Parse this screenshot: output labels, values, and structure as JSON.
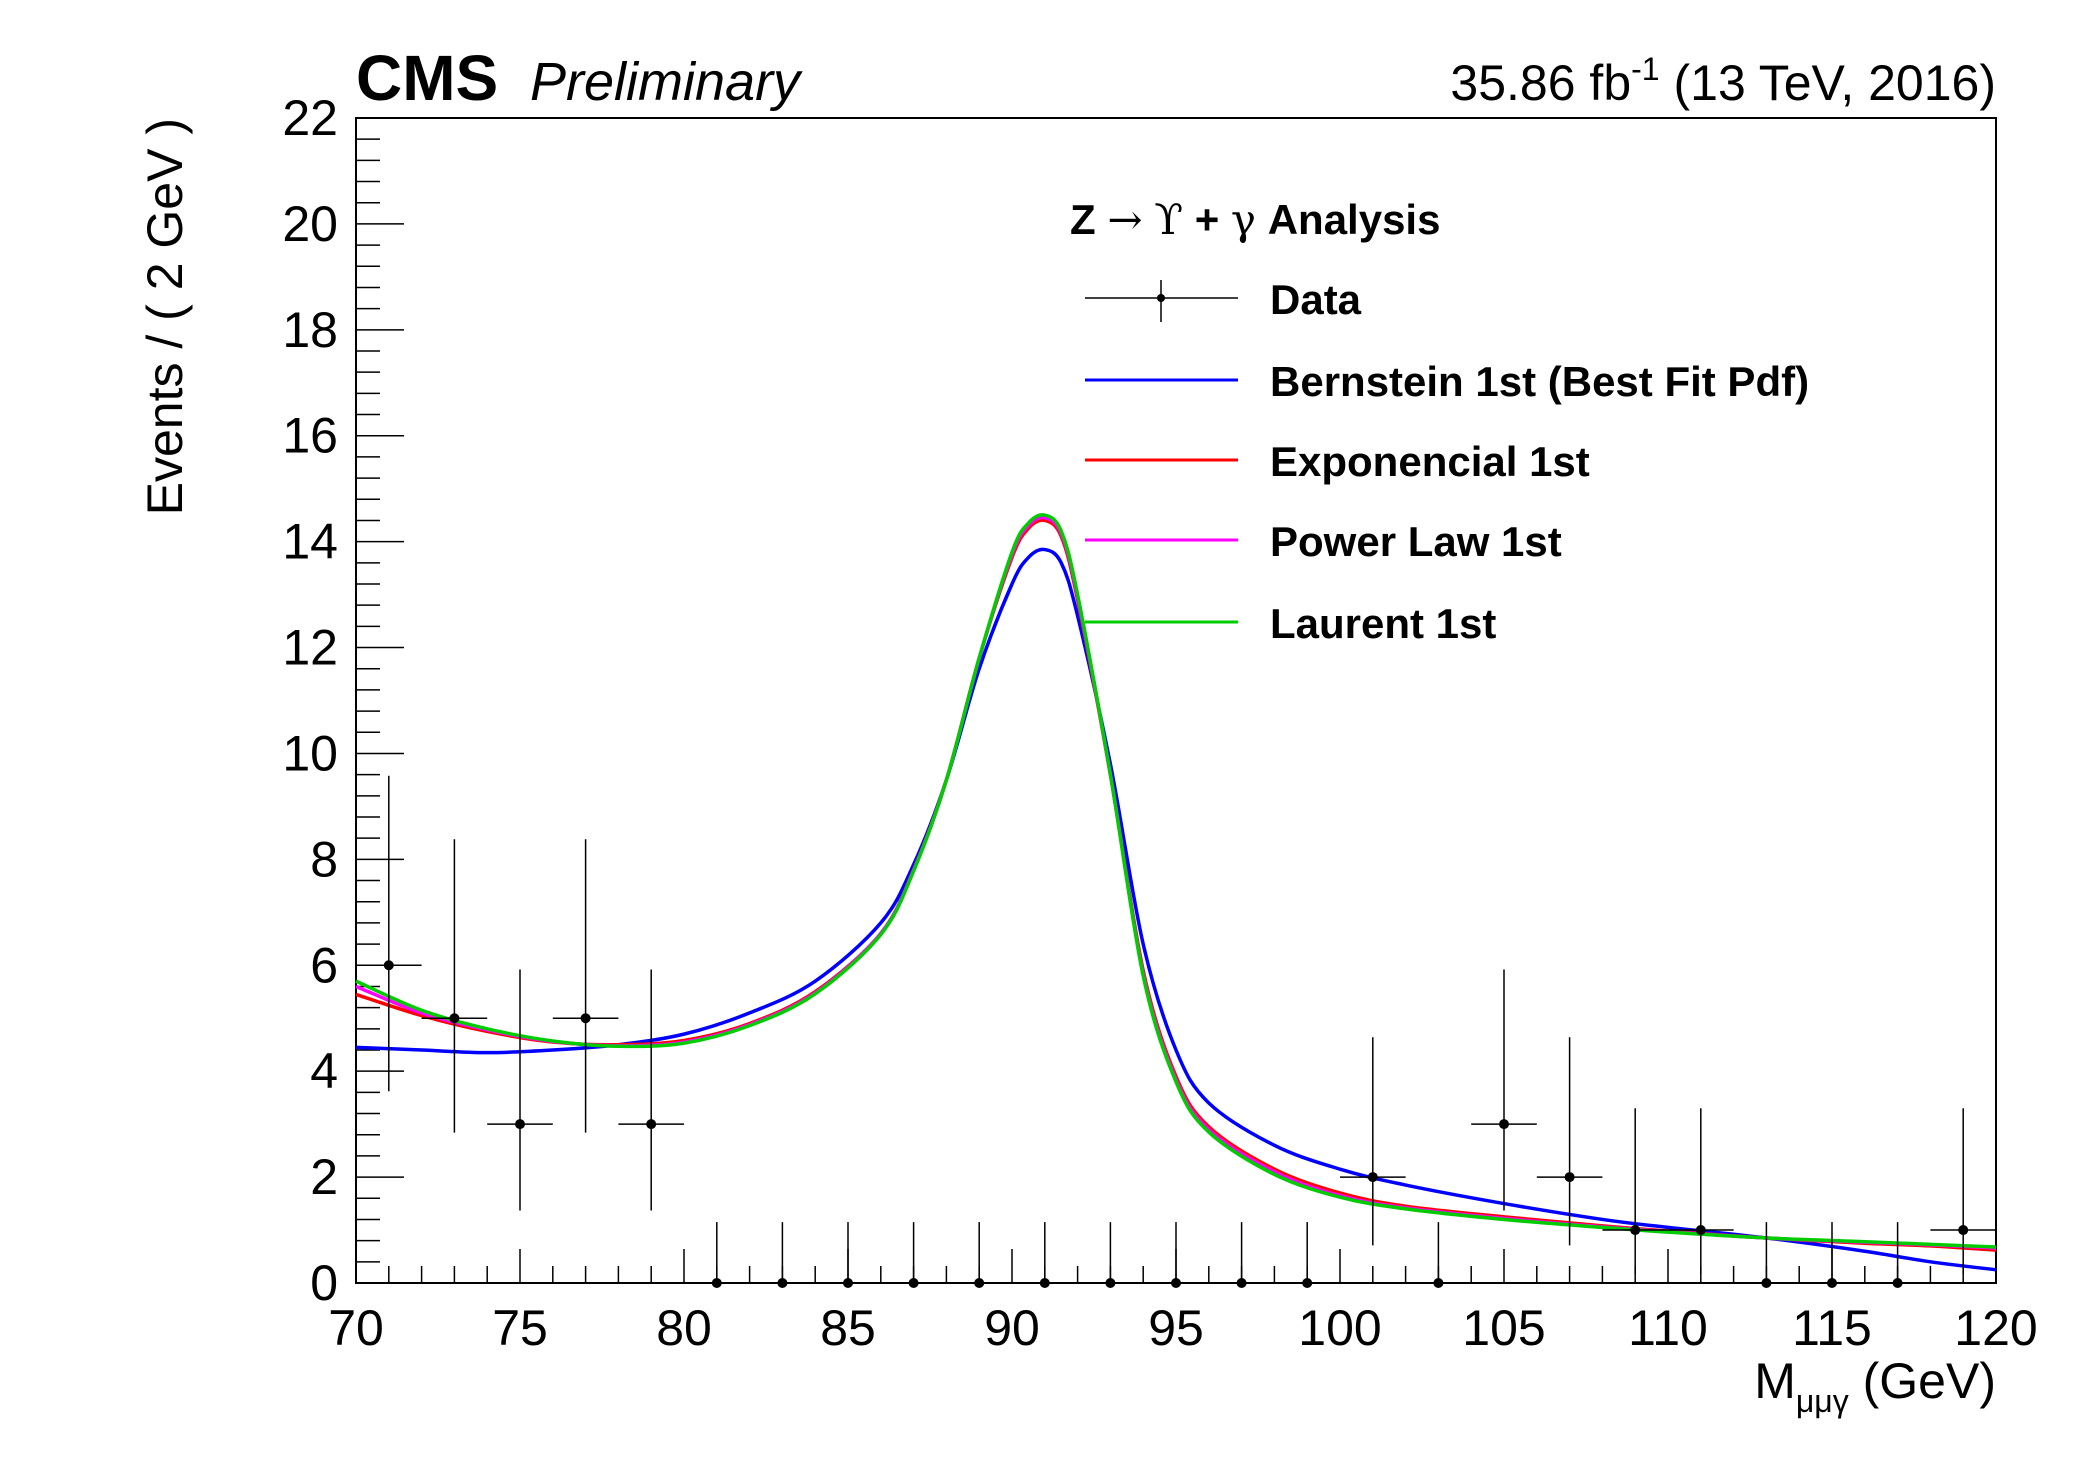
{
  "header": {
    "experiment": "CMS",
    "status": "Preliminary",
    "lumi_value": "35.86 fb",
    "lumi_exponent": "-1",
    "energy": "(13 TeV, 2016)"
  },
  "chart_data": {
    "type": "line",
    "title": "",
    "xlabel": "M",
    "xlabel_subscript": "μμγ",
    "xlabel_unit": "(GeV)",
    "ylabel": "Events / ( 2 GeV )",
    "xlim": [
      70,
      120
    ],
    "ylim": [
      0,
      22
    ],
    "xticks": [
      70,
      75,
      80,
      85,
      90,
      95,
      100,
      105,
      110,
      115,
      120
    ],
    "yticks": [
      0,
      2,
      4,
      6,
      8,
      10,
      12,
      14,
      16,
      18,
      20,
      22
    ],
    "grid": false,
    "legend_position": "top-right",
    "legend_header": {
      "z": "Z",
      "arrow": "→",
      "upsilon": "ϒ",
      "plus": "+",
      "gamma": "γ",
      "analysis": "Analysis"
    },
    "data_points": {
      "name": "Data",
      "color": "#000000",
      "x": [
        71,
        73,
        75,
        77,
        79,
        81,
        83,
        85,
        87,
        89,
        91,
        93,
        95,
        97,
        99,
        101,
        103,
        105,
        107,
        109,
        111,
        113,
        115,
        117,
        119
      ],
      "y": [
        6,
        5,
        3,
        5,
        3,
        0,
        0,
        0,
        0,
        0,
        0,
        0,
        0,
        0,
        0,
        2,
        0,
        3,
        2,
        1,
        1,
        0,
        0,
        0,
        1
      ],
      "y_err_low": [
        2.38,
        2.16,
        1.63,
        2.16,
        1.63,
        0,
        0,
        0,
        0,
        0,
        0,
        0,
        0,
        0,
        0,
        1.29,
        0,
        1.63,
        1.29,
        0.83,
        0.83,
        0,
        0,
        0,
        0.83
      ],
      "y_err_high": [
        3.58,
        3.38,
        2.92,
        3.38,
        2.92,
        1.15,
        1.15,
        1.15,
        1.15,
        1.15,
        1.15,
        1.15,
        1.15,
        1.15,
        1.15,
        2.64,
        1.15,
        2.92,
        2.64,
        2.3,
        2.3,
        1.15,
        1.15,
        1.15,
        2.3
      ],
      "x_half_bin": 1
    },
    "x": [
      70,
      72,
      74,
      76,
      78,
      80,
      82,
      84,
      86,
      87,
      88,
      89,
      90,
      90.5,
      91,
      91.5,
      92,
      93,
      94,
      95,
      96,
      98,
      100,
      102,
      105,
      108,
      110,
      113,
      116,
      118,
      120
    ],
    "series": [
      {
        "name": "Bernstein 1st (Best Fit Pdf)",
        "color": "#0000ff",
        "values": [
          4.45,
          4.4,
          4.35,
          4.4,
          4.5,
          4.7,
          5.1,
          5.7,
          6.8,
          7.9,
          9.5,
          11.6,
          13.2,
          13.7,
          13.85,
          13.6,
          12.6,
          9.8,
          6.4,
          4.4,
          3.4,
          2.6,
          2.15,
          1.85,
          1.5,
          1.2,
          1.05,
          0.85,
          0.6,
          0.4,
          0.25
        ]
      },
      {
        "name": "Exponencial 1st",
        "color": "#ff0000",
        "values": [
          5.45,
          5.05,
          4.75,
          4.55,
          4.5,
          4.58,
          4.9,
          5.5,
          6.6,
          7.8,
          9.5,
          11.8,
          13.7,
          14.25,
          14.4,
          14.1,
          12.9,
          9.6,
          5.9,
          3.9,
          2.95,
          2.15,
          1.7,
          1.45,
          1.25,
          1.08,
          0.98,
          0.85,
          0.75,
          0.7,
          0.62
        ]
      },
      {
        "name": "Power Law 1st",
        "color": "#ff00ff",
        "values": [
          5.6,
          5.1,
          4.78,
          4.56,
          4.48,
          4.55,
          4.88,
          5.48,
          6.6,
          7.8,
          9.5,
          11.8,
          13.75,
          14.3,
          14.45,
          14.15,
          12.95,
          9.6,
          5.85,
          3.85,
          2.9,
          2.1,
          1.65,
          1.42,
          1.22,
          1.06,
          0.97,
          0.85,
          0.77,
          0.72,
          0.66
        ]
      },
      {
        "name": "Laurent 1st",
        "color": "#00cc00",
        "values": [
          5.7,
          5.15,
          4.8,
          4.57,
          4.47,
          4.53,
          4.86,
          5.46,
          6.58,
          7.78,
          9.5,
          11.8,
          13.8,
          14.35,
          14.5,
          14.2,
          13.0,
          9.6,
          5.8,
          3.8,
          2.85,
          2.05,
          1.62,
          1.4,
          1.2,
          1.05,
          0.96,
          0.85,
          0.78,
          0.73,
          0.68
        ]
      }
    ]
  }
}
